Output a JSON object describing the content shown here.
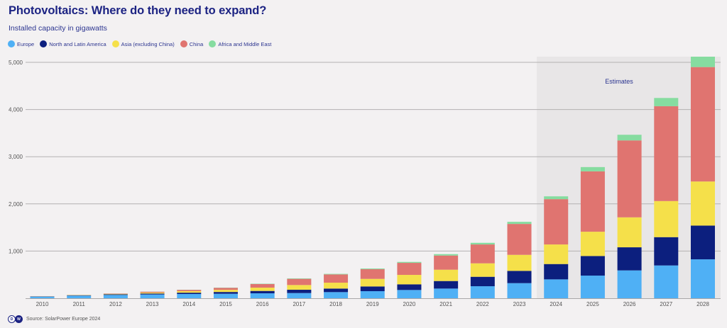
{
  "header": {
    "title": "Photovoltaics: Where do they need to expand?",
    "subtitle": "Installed capacity in gigawatts"
  },
  "footer": {
    "logo_text": "DW",
    "source": "Source: SolarPower Europe 2024"
  },
  "chart_data": {
    "type": "bar",
    "stacked": true,
    "title": "Photovoltaics: Where do they need to expand?",
    "subtitle": "Installed capacity in gigawatts",
    "xlabel": "",
    "ylabel": "",
    "ylim": [
      0,
      5000
    ],
    "yticks": [
      1000,
      2000,
      3000,
      4000,
      5000
    ],
    "ytick_labels": [
      "1,000",
      "2,000",
      "3,000",
      "4,000",
      "5,000"
    ],
    "grid": true,
    "legend_position": "top-left",
    "annotation": "Estimates",
    "estimate_from": "2024",
    "categories": [
      "2010",
      "2011",
      "2012",
      "2013",
      "2014",
      "2015",
      "2016",
      "2017",
      "2018",
      "2019",
      "2020",
      "2021",
      "2022",
      "2023",
      "2024",
      "2025",
      "2026",
      "2027",
      "2028"
    ],
    "series": [
      {
        "name": "Europe",
        "color": "#4fb0f5",
        "values": [
          35,
          55,
          70,
          80,
          90,
          95,
          105,
          110,
          130,
          150,
          175,
          205,
          255,
          320,
          400,
          480,
          590,
          695,
          825
        ]
      },
      {
        "name": "North and Latin America",
        "color": "#0c1f7e",
        "values": [
          5,
          8,
          13,
          20,
          28,
          38,
          50,
          70,
          75,
          100,
          120,
          160,
          200,
          260,
          325,
          415,
          490,
          600,
          715
        ]
      },
      {
        "name": "Asia (excluding China)",
        "color": "#f5e04a",
        "values": [
          3,
          5,
          10,
          20,
          32,
          45,
          70,
          100,
          125,
          160,
          200,
          240,
          285,
          340,
          415,
          515,
          635,
          765,
          935
        ]
      },
      {
        "name": "China",
        "color": "#e07470",
        "values": [
          2,
          3,
          7,
          18,
          28,
          43,
          77,
          131,
          175,
          205,
          255,
          300,
          400,
          655,
          960,
          1280,
          1630,
          2010,
          2425
        ]
      },
      {
        "name": "Africa and Middle East",
        "color": "#86dca0",
        "values": [
          0,
          1,
          1,
          2,
          3,
          5,
          7,
          10,
          12,
          15,
          20,
          30,
          35,
          45,
          60,
          90,
          120,
          175,
          220
        ]
      }
    ]
  }
}
